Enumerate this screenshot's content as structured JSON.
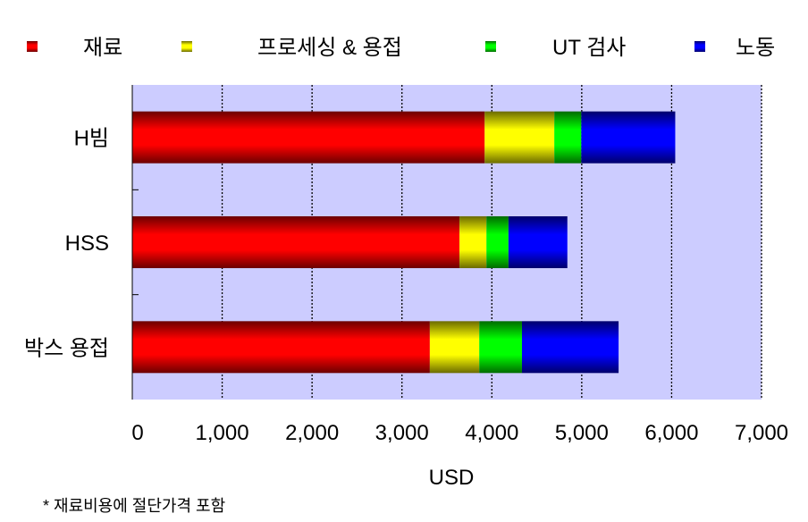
{
  "chart_data": {
    "type": "bar",
    "orientation": "horizontal",
    "stacked": true,
    "categories": [
      "H빔",
      "HSS",
      "박스 용접"
    ],
    "series": [
      {
        "name": "재료",
        "color": "#ff0000",
        "values": [
          3920,
          3640,
          3310
        ]
      },
      {
        "name": "프로세싱 & 용접",
        "color": "#ffff00",
        "values": [
          775,
          300,
          550
        ]
      },
      {
        "name": "UT 검사",
        "color": "#00ff00",
        "values": [
          300,
          245,
          475
        ]
      },
      {
        "name": "노동",
        "color": "#0000ff",
        "values": [
          1045,
          655,
          1075
        ]
      }
    ],
    "xlabel": "USD",
    "xlim": [
      0,
      7000
    ],
    "xticks": [
      "0",
      "1,000",
      "2,000",
      "3,000",
      "4,000",
      "5,000",
      "6,000",
      "7,000"
    ],
    "grid": "vertical dotted",
    "legend": "top",
    "plot_background": "#ccccff",
    "footnote": "*  재료비용에 절단가격 포함"
  }
}
